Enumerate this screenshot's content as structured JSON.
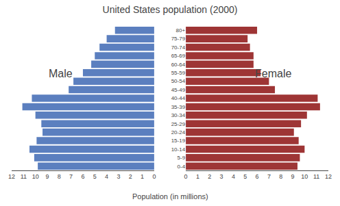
{
  "chart_data": {
    "type": "bar",
    "orientation": "horizontal",
    "title": "United States population (2000)",
    "xlabel": "Population (in millions)",
    "categories": [
      "0-4",
      "5-9",
      "10-14",
      "15-19",
      "20-24",
      "25-29",
      "30-34",
      "35-39",
      "40-44",
      "45-49",
      "50-54",
      "55-59",
      "60-64",
      "65-69",
      "70-74",
      "75-79",
      "80+"
    ],
    "series": [
      {
        "name": "Male",
        "color": "#5b7fbf",
        "values": [
          9.8,
          10.1,
          10.5,
          9.9,
          9.4,
          9.5,
          10.0,
          11.1,
          10.3,
          7.2,
          6.8,
          6.0,
          5.3,
          5.0,
          4.6,
          4.0,
          3.3
        ]
      },
      {
        "name": "Female",
        "color": "#9e3535",
        "values": [
          9.4,
          9.6,
          10.0,
          9.5,
          9.1,
          9.7,
          10.2,
          11.3,
          11.1,
          7.5,
          7.0,
          6.3,
          5.7,
          5.7,
          5.4,
          5.2,
          6.0
        ]
      }
    ],
    "xlim": [
      0,
      12
    ],
    "xticks": [
      0,
      1,
      2,
      3,
      4,
      5,
      6,
      7,
      8,
      9,
      10,
      11,
      12
    ],
    "grid": false
  }
}
